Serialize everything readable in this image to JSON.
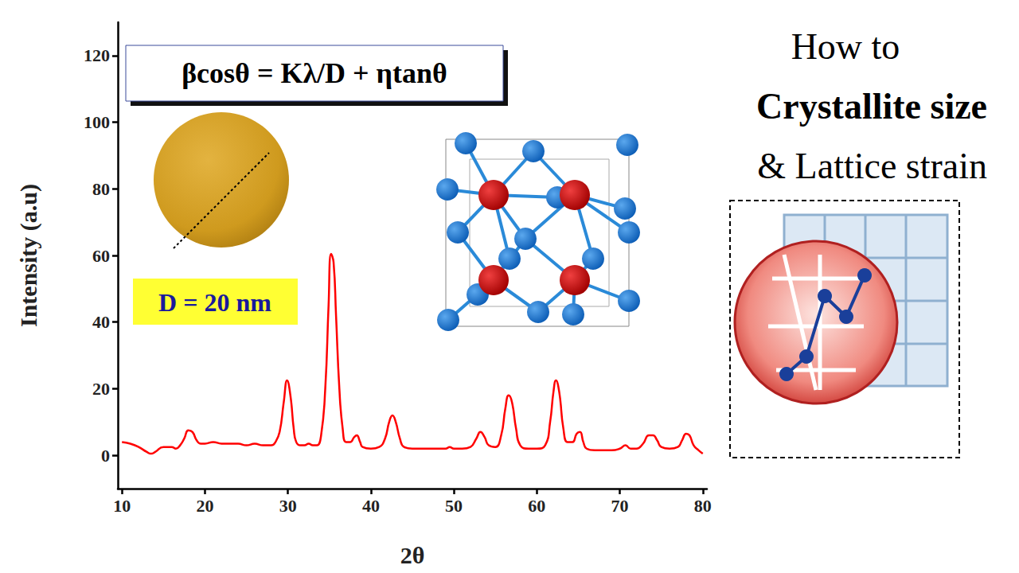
{
  "chart_data": {
    "type": "line",
    "x_label": "2θ",
    "y_label": "Intensity (a.u)",
    "color": "#ff0000",
    "xlim": [
      9.5,
      80.5
    ],
    "xticks": [
      10,
      20,
      30,
      40,
      50,
      60,
      70,
      80
    ],
    "ylim": [
      -10,
      130
    ],
    "yticks": [
      0,
      20,
      40,
      60,
      80,
      100,
      120
    ],
    "grid": false,
    "x": [
      10,
      11,
      12,
      13,
      13.5,
      14,
      15,
      16,
      16.5,
      17,
      17.5,
      18,
      18.5,
      19,
      19.5,
      20,
      21,
      22,
      23,
      24,
      25,
      26,
      27,
      28,
      28.5,
      29,
      29.5,
      29.9,
      30.3,
      30.7,
      31,
      31.5,
      32,
      32.5,
      33,
      33.5,
      34,
      34.5,
      34.9,
      35.2,
      35.5,
      35.8,
      36.2,
      36.6,
      37,
      37.5,
      38,
      38.3,
      38.7,
      39,
      40,
      41,
      41.7,
      42.2,
      42.6,
      43,
      43.5,
      44,
      45,
      46,
      47,
      48,
      49,
      49.5,
      50,
      51,
      52,
      52.7,
      53.2,
      53.7,
      54.2,
      55,
      55.7,
      56.2,
      56.6,
      57,
      57.5,
      58,
      59,
      60,
      61,
      61.6,
      62,
      62.3,
      62.7,
      63.2,
      63.7,
      64.3,
      64.8,
      65.2,
      65.6,
      66,
      67,
      68,
      69,
      70,
      70.7,
      71.3,
      72,
      72.8,
      73.5,
      74,
      74.5,
      75,
      76,
      77,
      77.5,
      78,
      78.4,
      78.9,
      79.5,
      80
    ],
    "values": [
      4,
      3.5,
      2.5,
      1,
      0.5,
      1,
      2.5,
      2.5,
      2,
      3,
      5,
      7.5,
      7,
      4.5,
      3.5,
      3.5,
      4,
      3.5,
      3.5,
      3.5,
      3,
      3.5,
      3,
      3,
      4,
      7,
      16,
      22.5,
      18,
      8,
      4,
      3,
      3,
      3.5,
      3,
      3,
      6,
      20,
      45,
      60.5,
      58,
      42,
      20,
      8,
      4,
      4,
      5.5,
      6,
      4,
      2.5,
      2,
      2.5,
      5,
      10,
      12,
      10,
      5,
      2.5,
      2,
      2,
      2,
      2,
      2,
      2.5,
      2,
      2,
      2.5,
      5,
      7,
      5.5,
      3,
      2.5,
      6,
      14,
      18,
      16,
      8,
      3,
      2,
      2,
      3,
      10,
      19,
      22.5,
      19,
      8,
      4,
      4,
      6.5,
      7,
      4,
      2,
      1.5,
      1.5,
      1.5,
      2,
      3,
      2,
      2,
      3.5,
      6,
      6,
      4.5,
      2.5,
      2,
      2.5,
      4.5,
      6.5,
      6,
      3,
      1.5,
      0.5
    ],
    "annotations": {
      "formula": [
        "βcosθ = Kλ/",
        "D",
        " + ηtanθ"
      ],
      "size_label": "D = 20 nm",
      "heading": [
        [
          "How to"
        ],
        [
          "Crystallite size"
        ],
        [
          "& ",
          "Lattice ",
          "strain"
        ]
      ]
    }
  }
}
